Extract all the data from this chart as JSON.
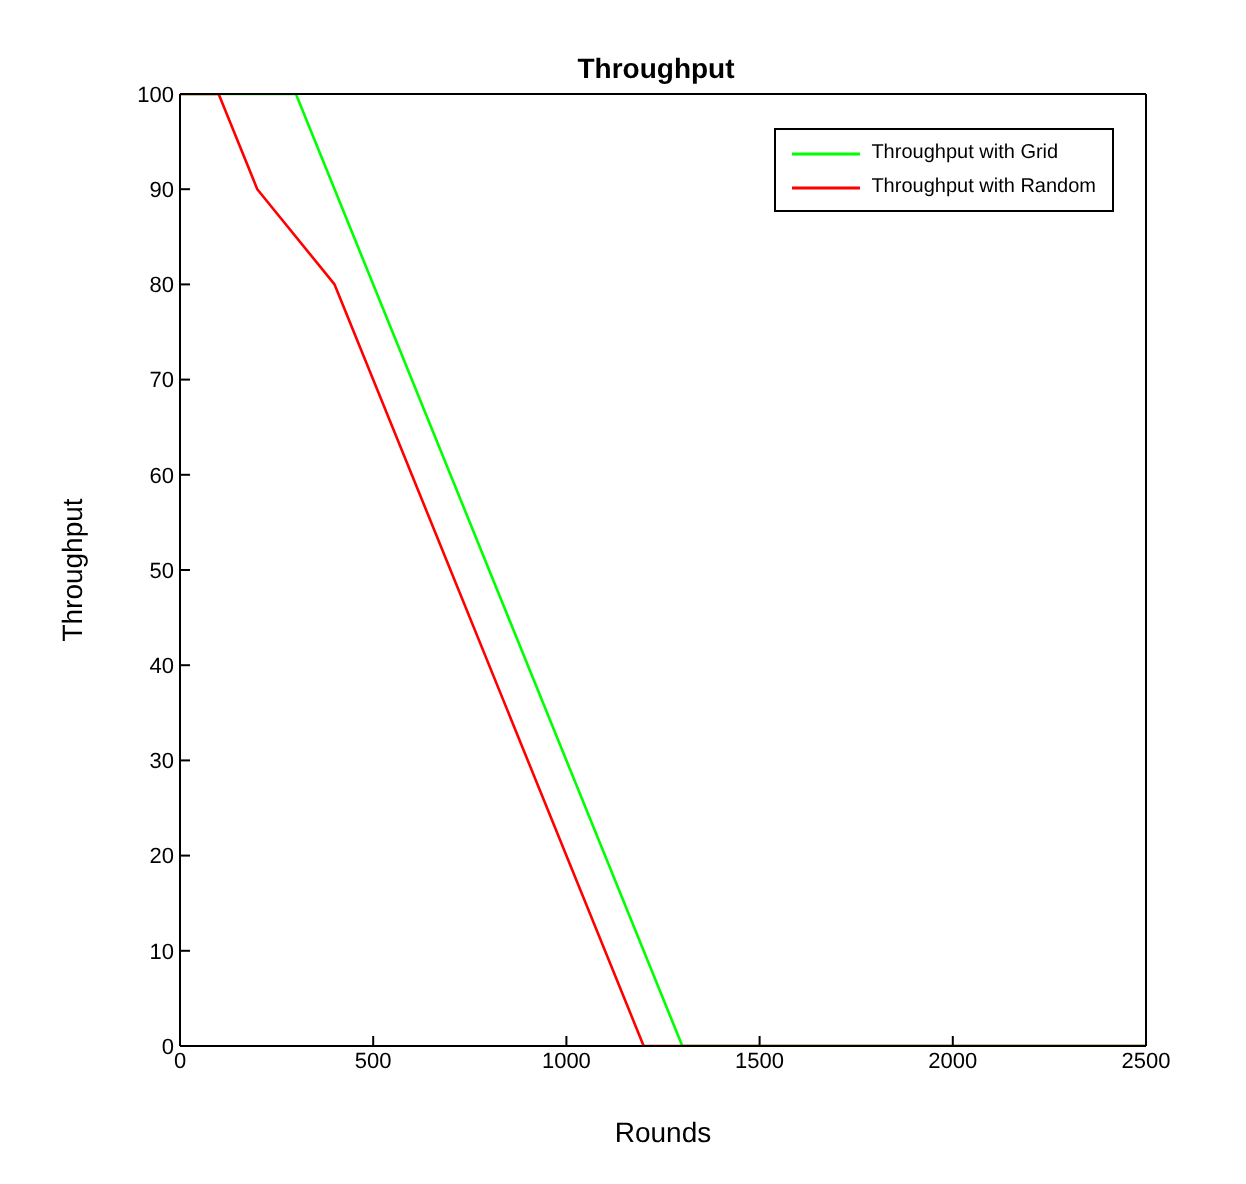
{
  "chart_data": {
    "type": "line",
    "title": "Throughput",
    "xlabel": "Rounds",
    "ylabel": "Throughput",
    "xlim": [
      0,
      2500
    ],
    "xticks": [
      0,
      500,
      1000,
      1500,
      2000,
      2500
    ],
    "ylim": [
      0,
      100
    ],
    "yticks": [
      0,
      10,
      20,
      30,
      40,
      50,
      60,
      70,
      80,
      90,
      100
    ],
    "legend": "top right",
    "marker": "none",
    "line_style": "solid",
    "series": [
      {
        "name": "Throughput with Grid",
        "color": "#00ff00",
        "x": [
          0,
          300,
          1300,
          2500
        ],
        "values": [
          100,
          100,
          0,
          0
        ]
      },
      {
        "name": "Throughput with Random",
        "color": "#ff0000",
        "x": [
          0,
          100,
          200,
          400,
          1200,
          2500
        ],
        "values": [
          100,
          100,
          90,
          80,
          0,
          0
        ]
      }
    ]
  }
}
